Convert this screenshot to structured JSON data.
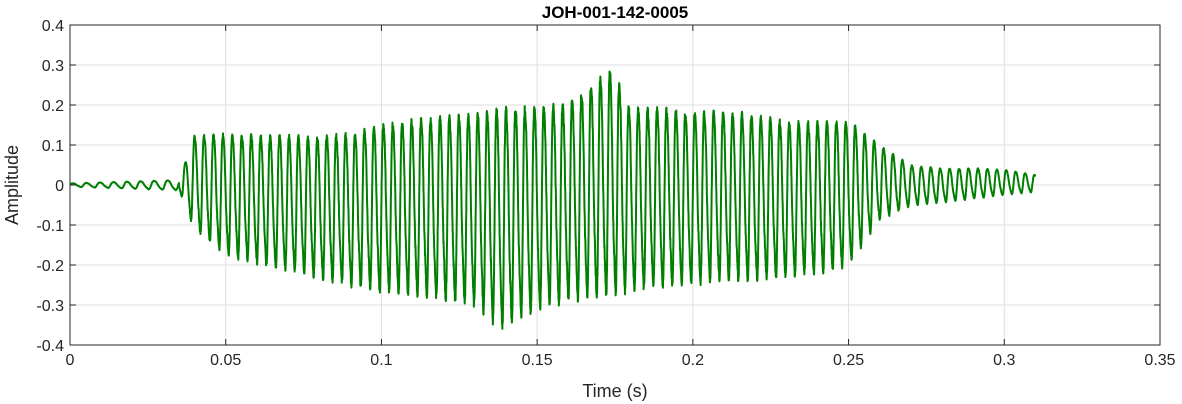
{
  "chart_data": {
    "type": "line",
    "title": "JOH-001-142-0005",
    "xlabel": "Time (s)",
    "ylabel": "Amplitude",
    "xlim": [
      0,
      0.35
    ],
    "ylim": [
      -0.4,
      0.4
    ],
    "xticks": [
      0,
      0.05,
      0.1,
      0.15,
      0.2,
      0.25,
      0.3,
      0.35
    ],
    "xtick_labels": [
      "0",
      "0.05",
      "0.1",
      "0.15",
      "0.2",
      "0.25",
      "0.3",
      "0.35"
    ],
    "yticks": [
      -0.4,
      -0.3,
      -0.2,
      -0.1,
      0,
      0.1,
      0.2,
      0.3,
      0.4
    ],
    "ytick_labels": [
      "-0.4",
      "-0.3",
      "-0.2",
      "-0.1",
      "0",
      "0.1",
      "0.2",
      "0.3",
      "0.4"
    ],
    "grid": true,
    "series": [
      {
        "color": "#007f00",
        "x": [
          0,
          0.035,
          0.04,
          0.05,
          0.06,
          0.07,
          0.08,
          0.09,
          0.1,
          0.11,
          0.12,
          0.13,
          0.138,
          0.15,
          0.16,
          0.174,
          0.18,
          0.19,
          0.2,
          0.21,
          0.22,
          0.23,
          0.24,
          0.25,
          0.26,
          0.27,
          0.28,
          0.29,
          0.3,
          0.31
        ],
        "upper_envelope": [
          0.005,
          0.015,
          0.15,
          0.16,
          0.16,
          0.16,
          0.16,
          0.17,
          0.2,
          0.21,
          0.22,
          0.23,
          0.25,
          0.25,
          0.26,
          0.35,
          0.24,
          0.24,
          0.23,
          0.23,
          0.22,
          0.2,
          0.2,
          0.2,
          0.12,
          0.06,
          0.05,
          0.05,
          0.045,
          0.03
        ],
        "lower_envelope": [
          -0.005,
          -0.015,
          -0.13,
          -0.2,
          -0.22,
          -0.24,
          -0.26,
          -0.28,
          -0.3,
          -0.31,
          -0.32,
          -0.34,
          -0.4,
          -0.35,
          -0.33,
          -0.32,
          -0.3,
          -0.29,
          -0.28,
          -0.27,
          -0.27,
          -0.26,
          -0.25,
          -0.23,
          -0.1,
          -0.06,
          -0.05,
          -0.04,
          -0.03,
          -0.02
        ]
      }
    ]
  }
}
